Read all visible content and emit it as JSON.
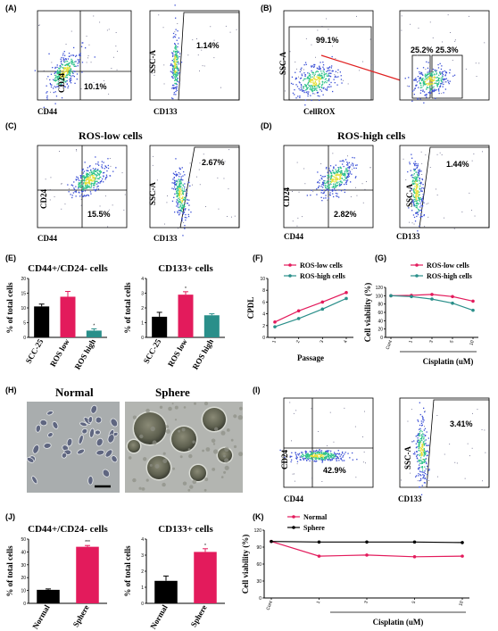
{
  "panels": {
    "A": {
      "label": "(A)",
      "left": {
        "ylabel": "CD24",
        "xlabel": "CD44",
        "pct": "10.1%"
      },
      "right": {
        "ylabel": "SSC-A",
        "xlabel": "CD133",
        "pct": "1.14%"
      }
    },
    "B": {
      "label": "(B)",
      "left": {
        "ylabel": "SSC-A",
        "xlabel": "CellROX",
        "pct": "99.1%"
      },
      "right": {
        "pct_low": "25.2%",
        "pct_high": "25.3%"
      }
    },
    "C": {
      "label": "(C)",
      "title": "ROS-low cells",
      "left": {
        "ylabel": "CD24",
        "xlabel": "CD44",
        "pct": "15.5%"
      },
      "right": {
        "ylabel": "SSC-A",
        "xlabel": "CD133",
        "pct": "2.67%"
      }
    },
    "D": {
      "label": "(D)",
      "title": "ROS-high cells",
      "left": {
        "ylabel": "CD24",
        "xlabel": "CD44",
        "pct": "2.82%"
      },
      "right": {
        "ylabel": "SSC-A",
        "xlabel": "CD133",
        "pct": "1.44%"
      }
    },
    "E": {
      "label": "(E)"
    },
    "F": {
      "label": "(F)"
    },
    "G": {
      "label": "(G)"
    },
    "H": {
      "label": "(H)",
      "left_title": "Normal",
      "right_title": "Sphere"
    },
    "I": {
      "label": "(I)",
      "left": {
        "ylabel": "CD24",
        "xlabel": "CD44",
        "pct": "42.9%"
      },
      "right": {
        "ylabel": "SSC-A",
        "xlabel": "CD133",
        "pct": "3.41%"
      }
    },
    "J": {
      "label": "(J)"
    },
    "K": {
      "label": "(K)"
    }
  },
  "colors": {
    "blue_dots": "#3a4fd6",
    "green_dots": "#2ec28a",
    "hot": "#e7e03a",
    "red": "#e31b5c",
    "teal": "#2a8f8a",
    "black": "#000000",
    "arrow": "#e02020"
  },
  "chart_data": [
    {
      "id": "E1",
      "type": "bar",
      "title": "CD44+/CD24- cells",
      "ylabel": "% of total cells",
      "categories": [
        "SCC-25",
        "ROS low",
        "ROS high"
      ],
      "values": [
        10.5,
        13.8,
        2.3
      ],
      "errors": [
        0.8,
        1.8,
        0.6
      ],
      "colors": [
        "#000000",
        "#e31b5c",
        "#2a8f8a"
      ],
      "ylim": [
        0,
        20
      ],
      "yticks": [
        0,
        5,
        10,
        15,
        20
      ],
      "sig": [
        "",
        "",
        "*"
      ]
    },
    {
      "id": "E2",
      "type": "bar",
      "title": "CD133+ cells",
      "ylabel": "% of total cells",
      "categories": [
        "SCC-25",
        "ROS low",
        "ROS high"
      ],
      "values": [
        1.4,
        2.9,
        1.5
      ],
      "errors": [
        0.3,
        0.2,
        0.1
      ],
      "colors": [
        "#000000",
        "#e31b5c",
        "#2a8f8a"
      ],
      "ylim": [
        0,
        4
      ],
      "yticks": [
        0,
        1,
        2,
        3,
        4
      ],
      "sig": [
        "",
        "*",
        ""
      ]
    },
    {
      "id": "F",
      "type": "line",
      "ylabel": "CPDL",
      "xlabel": "Passage",
      "categories": [
        "1",
        "2",
        "3",
        "4"
      ],
      "ylim": [
        0,
        10
      ],
      "yticks": [
        0,
        2,
        4,
        6,
        8,
        10
      ],
      "legend_position": "top",
      "series": [
        {
          "name": "ROS-low cells",
          "color": "#e31b5c",
          "values": [
            2.6,
            4.5,
            6.0,
            7.6
          ]
        },
        {
          "name": "ROS-high cells",
          "color": "#2a8f8a",
          "values": [
            1.8,
            3.2,
            4.8,
            6.6
          ]
        }
      ]
    },
    {
      "id": "G",
      "type": "line",
      "ylabel": "Cell viability (%)",
      "xlabel": "Cisplatin (uM)",
      "categories": [
        "Cont",
        "1",
        "3",
        "5",
        "10"
      ],
      "ylim": [
        0,
        120
      ],
      "yticks": [
        0,
        20,
        40,
        60,
        80,
        100,
        120
      ],
      "legend_position": "top",
      "series": [
        {
          "name": "ROS-low cells",
          "color": "#e31b5c",
          "values": [
            100,
            101,
            103,
            98,
            87
          ]
        },
        {
          "name": "ROS-high cells",
          "color": "#2a8f8a",
          "values": [
            100,
            98,
            92,
            82,
            65
          ]
        }
      ]
    },
    {
      "id": "J1",
      "type": "bar",
      "title": "CD44+/CD24- cells",
      "ylabel": "% of total cells",
      "categories": [
        "Normal",
        "Sphere"
      ],
      "values": [
        10.5,
        44.0
      ],
      "errors": [
        0.7,
        1.0
      ],
      "colors": [
        "#000000",
        "#e31b5c"
      ],
      "ylim": [
        0,
        50
      ],
      "yticks": [
        0,
        10,
        20,
        30,
        40,
        50
      ],
      "sig": [
        "",
        "***"
      ]
    },
    {
      "id": "J2",
      "type": "bar",
      "title": "CD133+ cells",
      "ylabel": "% of total cells",
      "categories": [
        "Normal",
        "Sphere"
      ],
      "values": [
        1.4,
        3.2
      ],
      "errors": [
        0.3,
        0.2
      ],
      "colors": [
        "#000000",
        "#e31b5c"
      ],
      "ylim": [
        0,
        4
      ],
      "yticks": [
        0,
        1,
        2,
        3,
        4
      ],
      "sig": [
        "",
        "*"
      ]
    },
    {
      "id": "K",
      "type": "line",
      "ylabel": "Cell viability (%)",
      "xlabel": "Cisplatin (uM)",
      "categories": [
        "Cont",
        "1",
        "3",
        "5",
        "10"
      ],
      "ylim": [
        0,
        120
      ],
      "yticks": [
        0,
        30,
        60,
        90,
        120
      ],
      "legend_position": "top",
      "series": [
        {
          "name": "Normal",
          "color": "#e31b5c",
          "values": [
            100,
            74,
            76,
            73,
            74
          ]
        },
        {
          "name": "Sphere",
          "color": "#000000",
          "values": [
            100,
            99,
            99,
            99,
            98
          ]
        }
      ]
    }
  ]
}
